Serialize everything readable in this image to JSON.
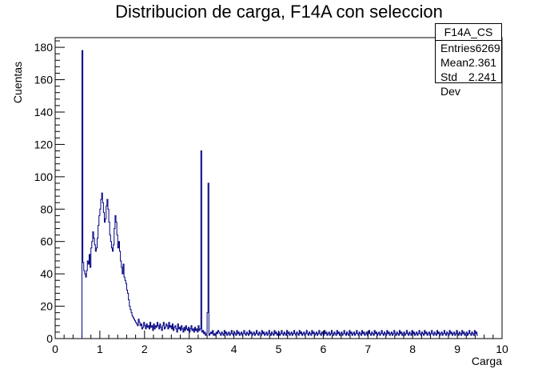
{
  "chart_data": {
    "type": "histogram",
    "title": "Distribucion de carga, F14A con seleccion",
    "xlabel": "Carga",
    "ylabel": "Cuentas",
    "xlim": [
      0,
      10
    ],
    "ylim": [
      0,
      186
    ],
    "xticks": [
      "0",
      "1",
      "2",
      "3",
      "4",
      "5",
      "6",
      "7",
      "8",
      "9",
      "10"
    ],
    "yticks": [
      "0",
      "20",
      "40",
      "60",
      "80",
      "100",
      "120",
      "140",
      "160",
      "180"
    ],
    "line_color": "#000080",
    "bin_width": 0.02,
    "x_start": 0.6,
    "values": [
      178,
      47,
      42,
      40,
      38,
      42,
      48,
      46,
      52,
      44,
      56,
      60,
      66,
      62,
      58,
      54,
      56,
      62,
      70,
      76,
      80,
      86,
      90,
      84,
      78,
      72,
      74,
      82,
      86,
      80,
      72,
      64,
      60,
      56,
      54,
      58,
      68,
      76,
      72,
      64,
      56,
      60,
      54,
      48,
      44,
      40,
      46,
      38,
      36,
      34,
      30,
      28,
      24,
      20,
      18,
      16,
      14,
      13,
      12,
      11,
      10,
      9,
      8,
      12,
      10,
      8,
      9,
      6,
      7,
      10,
      8,
      6,
      9,
      7,
      8,
      6,
      10,
      7,
      8,
      5,
      9,
      6,
      8,
      7,
      10,
      8,
      6,
      9,
      7,
      5,
      8,
      10,
      6,
      7,
      9,
      8,
      6,
      10,
      7,
      8,
      6,
      9,
      5,
      7,
      8,
      6,
      4,
      9,
      6,
      7,
      5,
      8,
      6,
      4,
      7,
      5,
      8,
      6,
      5,
      7,
      4,
      6,
      8,
      5,
      6,
      4,
      7,
      5,
      6,
      4,
      8,
      5,
      6,
      116,
      4,
      5,
      3,
      4,
      2,
      3,
      16,
      96,
      2,
      3,
      4,
      3,
      5,
      2,
      3,
      2,
      4,
      3,
      5,
      4,
      3,
      2,
      4,
      3,
      2,
      5,
      3,
      4,
      2,
      3,
      4,
      2,
      3,
      5,
      3,
      2,
      4,
      3,
      2,
      5,
      3,
      4,
      2,
      3,
      4,
      2,
      3,
      5,
      3,
      2,
      4,
      3,
      2,
      5,
      3,
      4,
      2,
      3,
      4,
      2,
      3,
      5,
      3,
      2,
      4,
      3,
      2,
      5,
      3,
      4,
      2,
      3,
      4,
      2,
      3,
      5,
      3,
      2,
      4,
      3,
      2,
      5,
      3,
      4,
      2,
      3,
      4,
      2,
      3,
      5,
      3,
      2,
      4,
      3,
      2,
      5,
      3,
      4,
      2,
      3,
      4,
      2,
      3,
      5,
      3,
      2,
      4,
      3,
      2,
      5,
      3,
      4,
      2,
      3,
      4,
      2,
      3,
      5,
      3,
      2,
      4,
      3,
      2,
      5,
      3,
      4,
      2,
      3,
      4,
      2,
      3,
      5,
      3,
      2,
      4,
      3,
      2,
      5,
      3,
      4,
      2,
      3,
      4,
      2,
      3,
      5,
      3,
      2,
      4,
      3,
      2,
      5,
      3,
      4,
      2,
      3,
      4,
      2,
      3,
      5,
      3,
      2,
      4,
      3,
      2,
      5,
      3,
      4,
      2,
      3,
      4,
      2,
      3,
      5,
      3,
      2,
      4,
      3,
      2,
      5,
      3,
      4,
      2,
      3,
      4,
      2,
      3,
      5,
      3,
      2,
      4,
      3,
      2,
      5,
      3,
      4,
      2,
      3,
      4,
      2,
      3,
      5,
      3,
      2,
      4,
      3,
      2,
      5,
      3,
      4,
      2,
      3,
      4,
      2,
      3,
      5,
      3,
      2,
      4,
      3,
      2,
      5,
      3,
      4,
      2,
      3,
      4,
      2,
      3,
      5,
      3,
      2,
      4,
      3,
      2,
      5,
      3,
      4,
      2,
      3,
      4,
      2,
      3,
      5,
      3,
      2,
      4,
      3,
      2,
      5,
      3,
      4,
      2,
      3,
      4,
      2,
      3,
      5,
      3,
      2,
      4,
      3,
      2,
      5,
      3,
      4,
      2,
      3,
      4,
      2,
      3,
      5,
      3,
      2,
      4,
      3,
      2,
      5,
      3,
      4,
      2,
      3,
      4,
      2,
      3,
      5,
      3,
      2,
      4,
      3,
      2,
      5,
      3,
      4,
      2,
      3,
      4,
      2,
      3,
      5,
      3,
      2,
      4,
      3,
      2,
      5,
      3,
      4,
      2
    ]
  },
  "stats": {
    "name": "F14A_CS",
    "entries_label": "Entries",
    "entries_value": "6269",
    "mean_label": "Mean",
    "mean_value": "2.361",
    "std_label": "Std Dev",
    "std_value": "2.241"
  }
}
